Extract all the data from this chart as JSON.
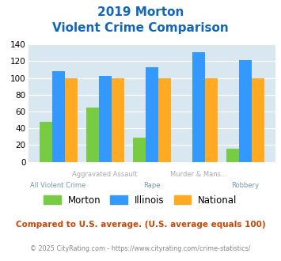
{
  "title_line1": "2019 Morton",
  "title_line2": "Violent Crime Comparison",
  "top_labels": [
    "",
    "Aggravated Assault",
    "",
    "Murder & Mans...",
    ""
  ],
  "bottom_labels": [
    "All Violent Crime",
    "",
    "Rape",
    "",
    "Robbery"
  ],
  "morton": [
    48,
    65,
    29,
    0,
    16
  ],
  "illinois": [
    108,
    102,
    113,
    131,
    121
  ],
  "national": [
    100,
    100,
    100,
    100,
    100
  ],
  "morton_color": "#77cc44",
  "illinois_color": "#3399ff",
  "national_color": "#ffaa22",
  "ylim": [
    0,
    140
  ],
  "yticks": [
    0,
    20,
    40,
    60,
    80,
    100,
    120,
    140
  ],
  "bg_color": "#d9e8f0",
  "title_color": "#1166bb",
  "footer_text": "Compared to U.S. average. (U.S. average equals 100)",
  "copyright_text": "© 2025 CityRating.com - https://www.cityrating.com/crime-statistics/",
  "footer_color": "#cc4400",
  "copyright_color": "#888888",
  "xlabel_top_color": "#aaaaaa",
  "xlabel_bot_color": "#7799aa"
}
